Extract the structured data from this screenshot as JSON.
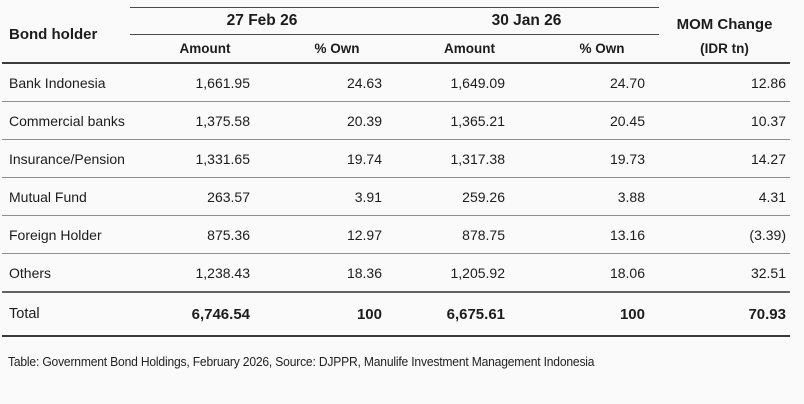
{
  "table": {
    "bond_holder_label": "Bond holder",
    "col_groups": [
      {
        "label": "27 Feb 26"
      },
      {
        "label": "30 Jan 26"
      }
    ],
    "mom_header_line1": "MOM Change",
    "mom_header_line2": "(IDR tn)",
    "sub_headers": [
      "Amount",
      "% Own",
      "Amount",
      "% Own"
    ],
    "rows": [
      {
        "holder": "Bank Indonesia",
        "feb_amount": "1,661.95",
        "feb_own": "24.63",
        "jan_amount": "1,649.09",
        "jan_own": "24.70",
        "mom": "12.86"
      },
      {
        "holder": "Commercial banks",
        "feb_amount": "1,375.58",
        "feb_own": "20.39",
        "jan_amount": "1,365.21",
        "jan_own": "20.45",
        "mom": "10.37"
      },
      {
        "holder": "Insurance/Pension",
        "feb_amount": "1,331.65",
        "feb_own": "19.74",
        "jan_amount": "1,317.38",
        "jan_own": "19.73",
        "mom": "14.27"
      },
      {
        "holder": "Mutual Fund",
        "feb_amount": "263.57",
        "feb_own": "3.91",
        "jan_amount": "259.26",
        "jan_own": "3.88",
        "mom": "4.31"
      },
      {
        "holder": "Foreign Holder",
        "feb_amount": "875.36",
        "feb_own": "12.97",
        "jan_amount": "878.75",
        "jan_own": "13.16",
        "mom": "(3.39)"
      },
      {
        "holder": "Others",
        "feb_amount": "1,238.43",
        "feb_own": "18.36",
        "jan_amount": "1,205.92",
        "jan_own": "18.06",
        "mom": "32.51"
      }
    ],
    "total": {
      "holder": "Total",
      "feb_amount": "6,746.54",
      "feb_own": "100",
      "jan_amount": "6,675.61",
      "jan_own": "100",
      "mom": "70.93"
    }
  },
  "caption": "Table: Government Bond Holdings, February 2026, Source: DJPPR, Manulife Investment Management Indonesia",
  "colors": {
    "background": "#fafafa",
    "text": "#1c1c1c",
    "rule_heavy": "#3b3b3b",
    "rule_light": "#8f8f8f"
  }
}
